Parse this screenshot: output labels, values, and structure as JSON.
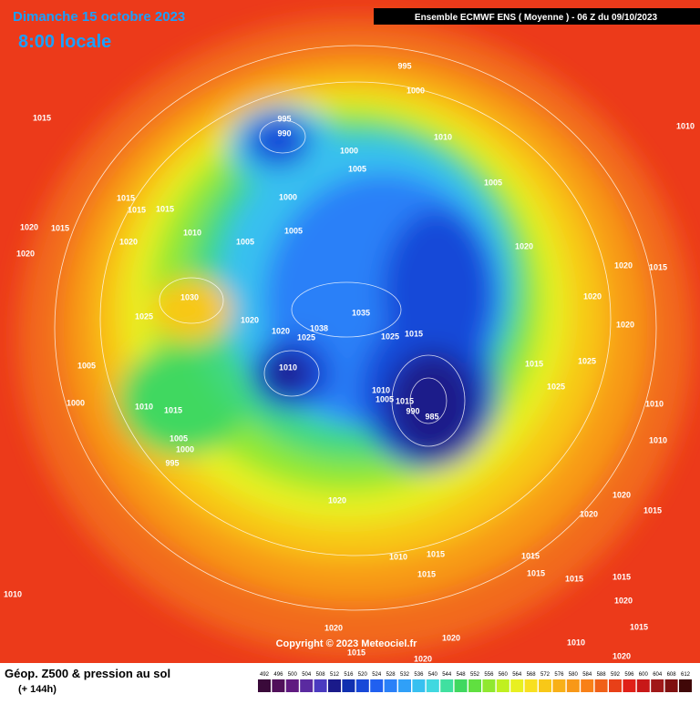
{
  "header": {
    "date": "Dimanche 15 octobre 2023",
    "time": "8:00 locale",
    "model": "Ensemble ECMWF ENS  ( Moyenne )  -  06 Z du 09/10/2023"
  },
  "footer": {
    "copyright": "Copyright © 2023 Meteociel.fr",
    "legend_title": "Géop. Z500 & pression au sol",
    "legend_subtitle": "(+ 144h)"
  },
  "scale": {
    "values": [
      492,
      496,
      500,
      504,
      508,
      512,
      516,
      520,
      524,
      528,
      532,
      536,
      540,
      544,
      548,
      552,
      556,
      560,
      564,
      568,
      572,
      576,
      580,
      584,
      588,
      592,
      596,
      600,
      604,
      608,
      612
    ],
    "colors": [
      "#3a0a3a",
      "#50105a",
      "#601a80",
      "#5a2aa0",
      "#4a3ac0",
      "#1a1a8a",
      "#1030b0",
      "#1848d8",
      "#2060f0",
      "#2a80f8",
      "#30a0f8",
      "#38c0f0",
      "#40d8e0",
      "#40e0a0",
      "#40d860",
      "#60e040",
      "#90e830",
      "#c0f020",
      "#e8f020",
      "#f8e020",
      "#f8c818",
      "#f8b018",
      "#f89818",
      "#f88018",
      "#f06018",
      "#e84018",
      "#e02018",
      "#c81818",
      "#a01818",
      "#801010",
      "#400808"
    ]
  },
  "map": {
    "pressure_labels": [
      995,
      1000,
      1015,
      995,
      990,
      1010,
      1000,
      1005,
      1005,
      1000,
      1015,
      1015,
      1015,
      1020,
      1015,
      1010,
      1005,
      1005,
      1020,
      1020,
      1020,
      1020,
      1015,
      1030,
      1020,
      1035,
      1025,
      1020,
      1038,
      1020,
      1025,
      1025,
      1015,
      1020,
      1015,
      1005,
      1010,
      1025,
      1025,
      1010,
      1005,
      1015,
      990,
      985,
      1000,
      1010,
      1015,
      1010,
      1005,
      1000,
      995,
      1010,
      1020,
      1020,
      1020,
      1015,
      1010,
      1015,
      1015,
      1015,
      1015,
      1010,
      1015,
      1015,
      1020,
      1010,
      1015,
      1020,
      1015,
      1020,
      1020,
      1020,
      1010
    ]
  }
}
